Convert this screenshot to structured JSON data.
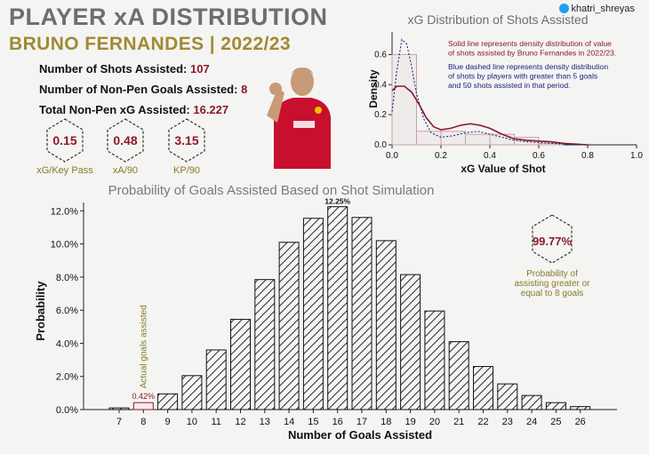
{
  "header": {
    "title": "PLAYER xA DISTRIBUTION",
    "subtitle": "BRUNO FERNANDES | 2022/23",
    "handle": "khatri_shreyas"
  },
  "stats": [
    {
      "label": "Number of Shots Assisted: ",
      "value": "107"
    },
    {
      "label": "Number of Non-Pen Goals Assisted: ",
      "value": "8"
    },
    {
      "label": "Total Non-Pen xG Assisted: ",
      "value": "16.227"
    }
  ],
  "badges": [
    {
      "value": "0.15",
      "label": "xG/Key Pass"
    },
    {
      "value": "0.48",
      "label": "xA/90"
    },
    {
      "value": "3.15",
      "label": "KP/90"
    }
  ],
  "probability_badge": {
    "value": "99.77%",
    "caption_lines": [
      "Probability of",
      "assisting greater or",
      "equal to 8 goals"
    ]
  },
  "chart_data": [
    {
      "type": "area",
      "title": "xG Distribution of Shots Assisted",
      "xlabel": "xG Value of Shot",
      "ylabel": "Density",
      "xlim": [
        0,
        1.0
      ],
      "ylim": [
        0,
        0.75
      ],
      "xticks": [
        "0.0",
        "0.2",
        "0.4",
        "0.6",
        "0.8",
        "1.0"
      ],
      "yticks": [
        "0.0",
        "0.2",
        "0.4",
        "0.6"
      ],
      "annotations": [
        {
          "text_lines": [
            "Solid line represents density distribution of value",
            "of shots assisted by Bruno Fernandes in 2022/23."
          ],
          "color": "#8b1a2b"
        },
        {
          "text_lines": [
            "Blue dashed line represents density distribution",
            "of shots by players with greater than 5 goals",
            "and 50 shots assisted in that period."
          ],
          "color": "#1a237e"
        }
      ],
      "histogram": {
        "bins": [
          [
            0,
            0.1
          ],
          [
            0.1,
            0.2
          ],
          [
            0.2,
            0.3
          ],
          [
            0.3,
            0.4
          ],
          [
            0.4,
            0.5
          ],
          [
            0.5,
            0.6
          ],
          [
            0.6,
            0.7
          ],
          [
            0.7,
            0.8
          ]
        ],
        "values": [
          0.6,
          0.09,
          0.09,
          0.07,
          0.07,
          0.05,
          0.01,
          0.0
        ]
      },
      "series": [
        {
          "name": "Bruno Fernandes",
          "style": "solid",
          "color": "#8b1a2b",
          "x": [
            0,
            0.02,
            0.05,
            0.08,
            0.11,
            0.14,
            0.17,
            0.2,
            0.24,
            0.28,
            0.32,
            0.36,
            0.4,
            0.45,
            0.5,
            0.55,
            0.6,
            0.65,
            0.7,
            0.75,
            0.8
          ],
          "y": [
            0.36,
            0.39,
            0.39,
            0.35,
            0.27,
            0.18,
            0.12,
            0.1,
            0.11,
            0.13,
            0.14,
            0.13,
            0.11,
            0.07,
            0.04,
            0.03,
            0.025,
            0.02,
            0.01,
            0.005,
            0.0
          ]
        },
        {
          "name": "Benchmark players",
          "style": "dashed",
          "color": "#1a237e",
          "x": [
            0,
            0.02,
            0.04,
            0.06,
            0.08,
            0.1,
            0.13,
            0.16,
            0.2,
            0.25,
            0.3,
            0.35,
            0.4,
            0.45,
            0.5,
            0.55,
            0.6,
            0.65,
            0.7,
            0.75,
            0.8
          ],
          "y": [
            0.22,
            0.5,
            0.7,
            0.67,
            0.52,
            0.34,
            0.17,
            0.08,
            0.05,
            0.06,
            0.08,
            0.09,
            0.07,
            0.05,
            0.03,
            0.02,
            0.015,
            0.01,
            0.005,
            0.002,
            0.0
          ]
        }
      ]
    },
    {
      "type": "bar",
      "title": "Probability of Goals Assisted Based on Shot Simulation",
      "xlabel": "Number of Goals Assisted",
      "ylabel": "Probability",
      "categories": [
        "7",
        "8",
        "9",
        "10",
        "11",
        "12",
        "13",
        "14",
        "15",
        "16",
        "17",
        "18",
        "19",
        "20",
        "21",
        "22",
        "23",
        "24",
        "25",
        "26"
      ],
      "values": [
        0.1,
        0.42,
        0.95,
        2.05,
        3.6,
        5.45,
        7.85,
        10.1,
        11.55,
        12.25,
        11.6,
        10.2,
        8.15,
        5.95,
        4.1,
        2.6,
        1.55,
        0.85,
        0.42,
        0.18
      ],
      "ylim": [
        0,
        12.5
      ],
      "yticks": [
        "0.0%",
        "2.0%",
        "4.0%",
        "6.0%",
        "8.0%",
        "10.0%",
        "12.0%"
      ],
      "highlight": {
        "category": "8",
        "label": "0.42%",
        "annotation": "Actual goals assisted"
      },
      "peak_label": "12.25%"
    }
  ]
}
